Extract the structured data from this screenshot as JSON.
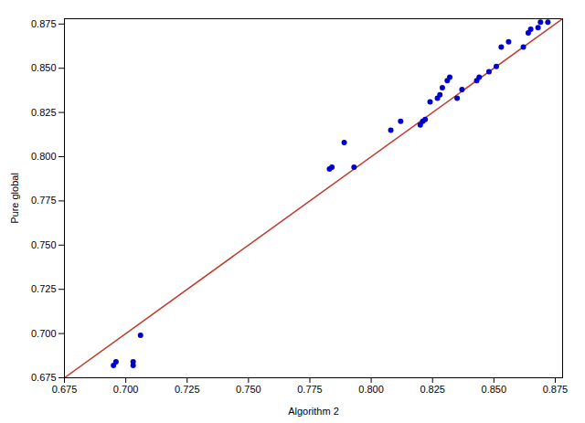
{
  "chart_data": {
    "type": "scatter",
    "xlabel": "Algorithm 2",
    "ylabel": "Pure global",
    "xlim": [
      0.675,
      0.878
    ],
    "ylim": [
      0.675,
      0.878
    ],
    "xticks": [
      0.675,
      {
        "value": 0.7,
        "label": "0.700"
      },
      0.725,
      {
        "value": 0.75,
        "label": "0.750"
      },
      0.775,
      {
        "value": 0.8,
        "label": "0.800"
      },
      0.825,
      {
        "value": 0.85,
        "label": "0.850"
      },
      0.875
    ],
    "yticks": [
      0.675,
      {
        "value": 0.7,
        "label": "0.700"
      },
      0.725,
      {
        "value": 0.75,
        "label": "0.750"
      },
      0.775,
      {
        "value": 0.8,
        "label": "0.800"
      },
      0.825,
      {
        "value": 0.85,
        "label": "0.850"
      },
      0.875
    ],
    "grid": false,
    "series": [
      {
        "type": "line",
        "color": "#c0392b",
        "x": [
          0.675,
          0.878
        ],
        "values": [
          0.675,
          0.878
        ]
      },
      {
        "type": "scatter",
        "color": "#0000cc",
        "x": [
          0.695,
          0.696,
          0.703,
          0.703,
          0.706,
          0.783,
          0.784,
          0.789,
          0.793,
          0.808,
          0.812,
          0.82,
          0.821,
          0.822,
          0.824,
          0.827,
          0.828,
          0.829,
          0.831,
          0.832,
          0.835,
          0.837,
          0.843,
          0.844,
          0.848,
          0.851,
          0.853,
          0.856,
          0.862,
          0.864,
          0.865,
          0.868,
          0.869,
          0.872
        ],
        "values": [
          0.682,
          0.684,
          0.682,
          0.684,
          0.699,
          0.793,
          0.794,
          0.808,
          0.794,
          0.815,
          0.82,
          0.818,
          0.82,
          0.821,
          0.831,
          0.833,
          0.835,
          0.839,
          0.843,
          0.845,
          0.833,
          0.838,
          0.843,
          0.845,
          0.848,
          0.851,
          0.862,
          0.865,
          0.862,
          0.87,
          0.872,
          0.873,
          0.876,
          0.876
        ]
      }
    ]
  }
}
